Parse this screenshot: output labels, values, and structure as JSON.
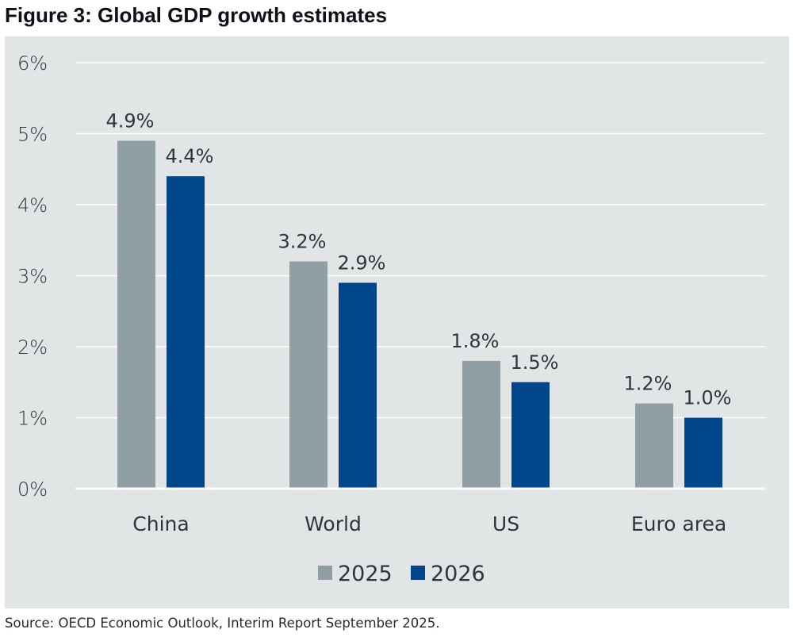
{
  "chart_data": {
    "type": "bar",
    "title": "Figure 3: Global GDP growth estimates",
    "source": "Source: OECD Economic Outlook, Interim Report September 2025.",
    "xlabel": "",
    "ylabel": "",
    "categories": [
      "China",
      "World",
      "US",
      "Euro area"
    ],
    "series": [
      {
        "name": "2025",
        "color": "#909fa3",
        "values": [
          4.9,
          3.2,
          1.8,
          1.2
        ],
        "labels": [
          "4.9%",
          "3.2%",
          "1.8%",
          "1.2%"
        ]
      },
      {
        "name": "2026",
        "color": "#00468b",
        "values": [
          4.4,
          2.9,
          1.5,
          1.0
        ],
        "labels": [
          "4.4%",
          "2.9%",
          "1.5%",
          "1.0%"
        ]
      }
    ],
    "ylim": [
      0,
      6
    ],
    "yticks": [
      0,
      1,
      2,
      3,
      4,
      5,
      6
    ],
    "ytick_labels": [
      "0%",
      "1%",
      "2%",
      "3%",
      "4%",
      "5%",
      "6%"
    ],
    "grid": true,
    "legend_position": "bottom-center",
    "background_color": "#e2e5e6",
    "grid_color": "#ffffff"
  }
}
